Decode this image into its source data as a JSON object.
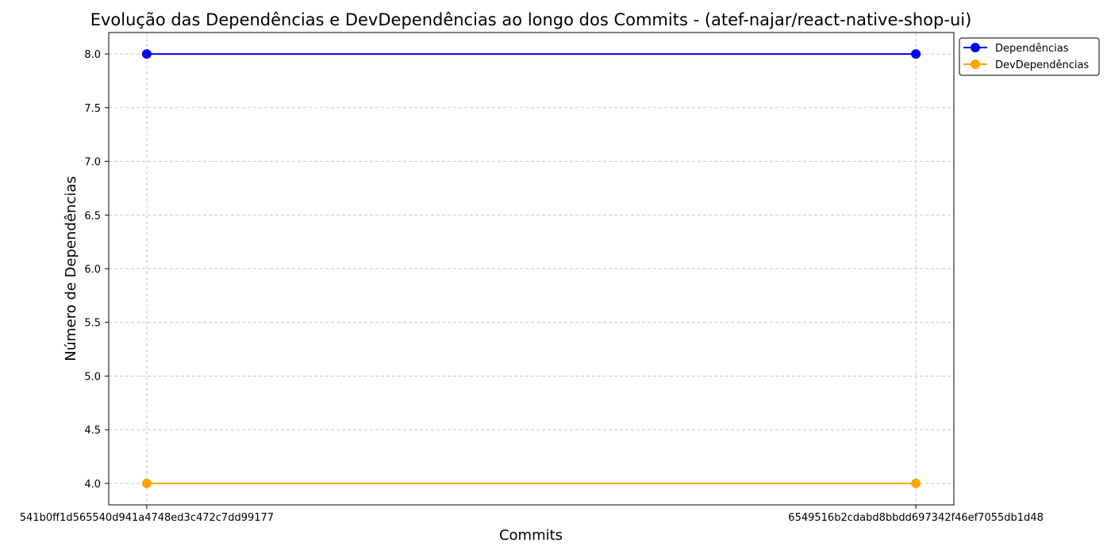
{
  "chart_data": {
    "type": "line",
    "title": "Evolução das Dependências e DevDependências ao longo dos Commits - (atef-najar/react-native-shop-ui)",
    "xlabel": "Commits",
    "ylabel": "Número de Dependências",
    "categories": [
      "541b0ff1d565540d941a4748ed3c472c7dd99177",
      "6549516b2cdabd8bbdd697342f46ef7055db1d48"
    ],
    "series": [
      {
        "name": "Dependências",
        "values": [
          8,
          8
        ],
        "color": "#0000ff"
      },
      {
        "name": "DevDependências",
        "values": [
          4,
          4
        ],
        "color": "#ffa500"
      }
    ],
    "ylim": [
      3.8,
      8.2
    ],
    "yticks": [
      "4.0",
      "4.5",
      "5.0",
      "5.5",
      "6.0",
      "6.5",
      "7.0",
      "7.5",
      "8.0"
    ],
    "grid": true,
    "grid_style": "dashed",
    "legend_position": "outside-top-right",
    "marker": "circle"
  }
}
